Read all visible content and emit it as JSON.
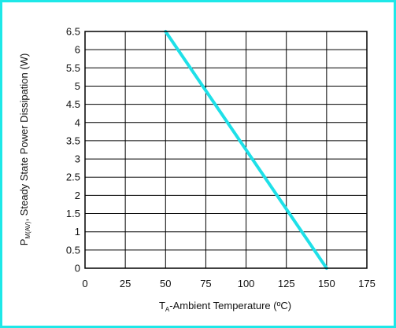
{
  "chart_data": {
    "type": "line",
    "ylabel": {
      "main": "P",
      "sub": "M(AV)",
      "rest": ", Steady State Power Dissipation (W)"
    },
    "xlabel": {
      "main": "T",
      "sub": "A",
      "rest": "-Ambient Temperature (ºC)"
    },
    "xlim": [
      0,
      175
    ],
    "ylim": [
      0,
      6.5
    ],
    "x_ticks": [
      "0",
      "25",
      "50",
      "75",
      "100",
      "125",
      "150",
      "175"
    ],
    "y_ticks": [
      "0",
      "0.5",
      "1",
      "1.5",
      "2",
      "2.5",
      "3",
      "3.5",
      "4",
      "4.5",
      "5",
      "5.5",
      "6",
      "6.5"
    ],
    "grid": true,
    "series": [
      {
        "color": "#1ee0e8",
        "x": [
          50,
          150
        ],
        "y": [
          6.5,
          0
        ]
      }
    ]
  },
  "colors": {
    "frame": "#1ee8e8",
    "grid": "#000000",
    "line": "#1ee0e8"
  }
}
